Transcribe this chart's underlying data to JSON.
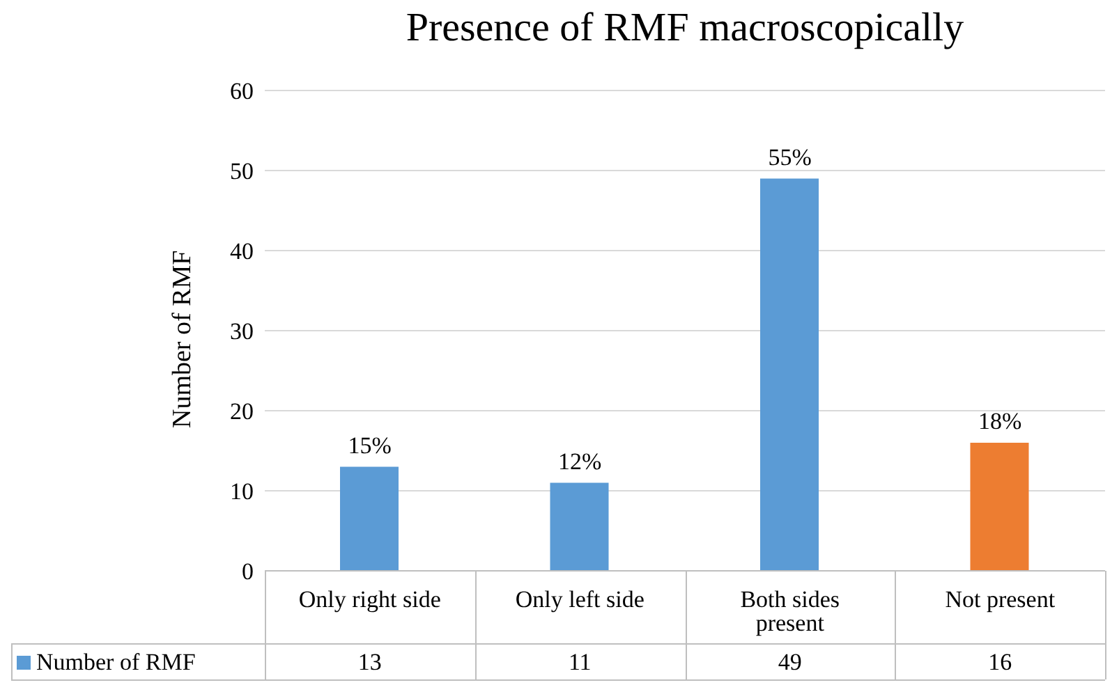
{
  "chart_data": {
    "type": "bar",
    "title": "Presence of RMF macroscopically",
    "ylabel": "Number of RMF",
    "categories": [
      "Only right side",
      "Only left side",
      "Both sides present",
      "Not present"
    ],
    "series": [
      {
        "name": "Number of RMF",
        "color": "#5b9bd5",
        "colors": [
          "#5b9bd5",
          "#5b9bd5",
          "#5b9bd5",
          "#ed7d31"
        ],
        "values": [
          13,
          11,
          49,
          16
        ]
      }
    ],
    "annotations": [
      {
        "text": "15%",
        "x": "Only right side",
        "y": 13
      },
      {
        "text": "12%",
        "x": "Only left side",
        "y": 11
      },
      {
        "text": "55%",
        "x": "Both sides present",
        "y": 49
      },
      {
        "text": "18%",
        "x": "Not present",
        "y": 16
      }
    ],
    "ylim": [
      0,
      60
    ],
    "yticks": [
      0,
      10,
      20,
      30,
      40,
      50,
      60
    ],
    "grid": "y",
    "legend": "bottom left",
    "data_labels": true
  }
}
